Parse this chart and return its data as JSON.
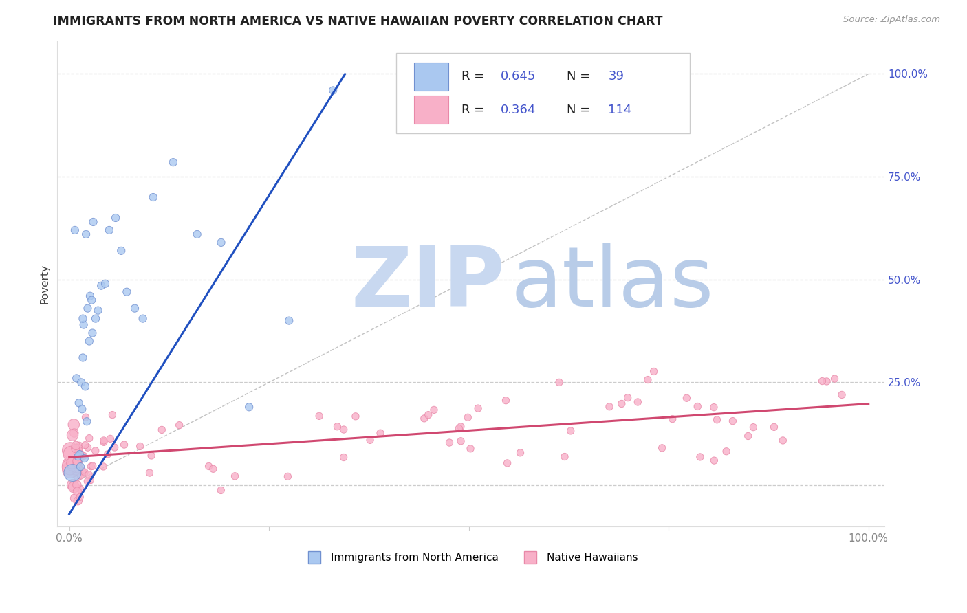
{
  "title": "IMMIGRANTS FROM NORTH AMERICA VS NATIVE HAWAIIAN POVERTY CORRELATION CHART",
  "source": "Source: ZipAtlas.com",
  "ylabel": "Poverty",
  "blue_R": 0.645,
  "blue_N": 39,
  "pink_R": 0.364,
  "pink_N": 114,
  "blue_label": "Immigrants from North America",
  "pink_label": "Native Hawaiians",
  "blue_fill": "#aac8f0",
  "pink_fill": "#f8b0c8",
  "blue_edge": "#7090d0",
  "pink_edge": "#e888a8",
  "blue_line_color": "#2050c0",
  "pink_line_color": "#d04870",
  "legend_text_color": "#222222",
  "legend_val_color": "#4455cc",
  "watermark_zip_color": "#c8d8f0",
  "watermark_atlas_color": "#b8cce8",
  "grid_color": "#cccccc",
  "grid_style": "--",
  "title_color": "#222222",
  "source_color": "#999999",
  "ylabel_color": "#444444",
  "right_tick_color": "#4455cc",
  "xtick_color": "#888888",
  "background": "#ffffff",
  "blue_slope": 3.1,
  "blue_intercept": -0.07,
  "pink_slope": 0.13,
  "pink_intercept": 0.068,
  "diag_color": "#aaaaaa",
  "ytick_positions": [
    0.0,
    0.25,
    0.5,
    0.75,
    1.0
  ],
  "ytick_labels_right": [
    "",
    "25.0%",
    "50.0%",
    "75.0%",
    "100.0%"
  ],
  "xlim": [
    -0.015,
    1.02
  ],
  "ylim": [
    -0.1,
    1.08
  ]
}
